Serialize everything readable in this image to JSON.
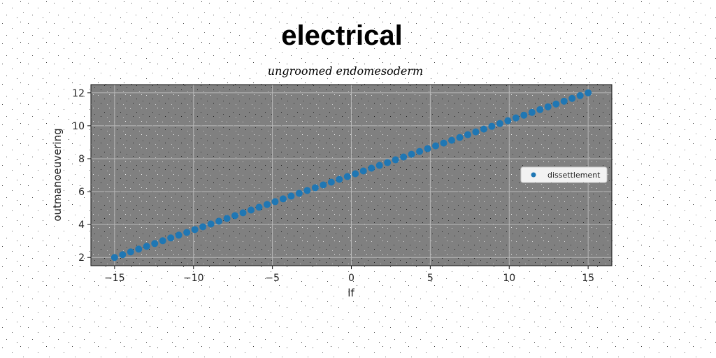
{
  "chart_data": {
    "type": "scatter",
    "title": "electrical",
    "subtitle": "ungroomed endomesoderm",
    "xlabel": "lf",
    "ylabel": "outmanoeuvering",
    "xlim": [
      -16.5,
      16.5
    ],
    "ylim": [
      1.5,
      12.5
    ],
    "xticks": [
      -15,
      -10,
      -5,
      0,
      5,
      10,
      15
    ],
    "xtick_labels": [
      "−15",
      "−10",
      "−5",
      "0",
      "5",
      "10",
      "15"
    ],
    "yticks": [
      2,
      4,
      6,
      8,
      10,
      12
    ],
    "ytick_labels": [
      "2",
      "4",
      "6",
      "8",
      "10",
      "12"
    ],
    "grid": true,
    "legend_position": "center-right",
    "series": [
      {
        "name": "dissettlement",
        "color": "#1f77b4",
        "marker": "circle",
        "x_start": -15,
        "x_end": 15,
        "n_points": 60,
        "x": [],
        "y": []
      }
    ]
  }
}
